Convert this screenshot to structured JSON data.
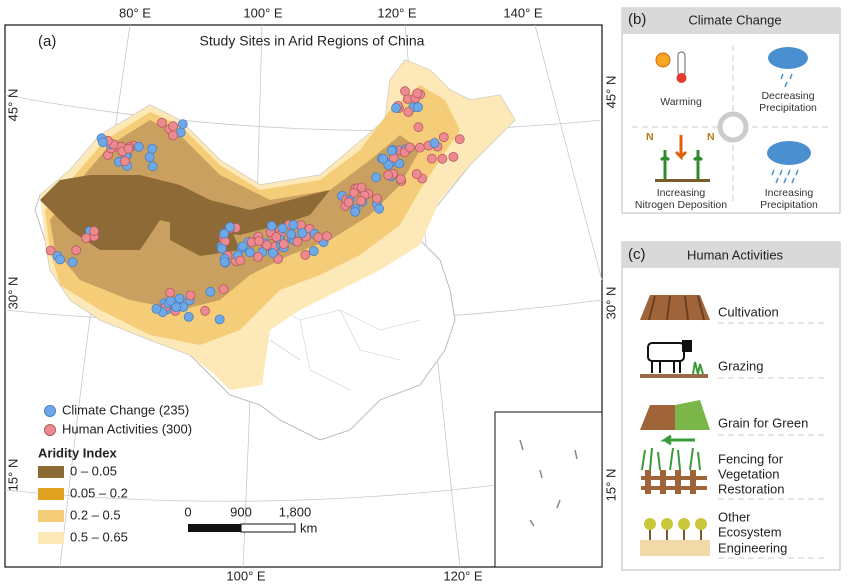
{
  "map": {
    "panel_label": "(a)",
    "title": "Study Sites in Arid Regions of China",
    "lon_labels_top": [
      "80° E",
      "100° E",
      "120° E",
      "140° E"
    ],
    "lon_labels_bottom": [
      "100° E",
      "120° E"
    ],
    "lat_labels_left": [
      "45° N",
      "30° N",
      "15° N"
    ],
    "lat_labels_right": [
      "45° N",
      "30° N",
      "15° N"
    ],
    "legend": {
      "points": [
        "Climate Change (235)",
        "Human Activities (300)"
      ],
      "aridity_title": "Aridity Index",
      "aridity_classes": [
        "0 – 0.05",
        "0.05 – 0.2",
        "0.2 – 0.5",
        "0.5 – 0.65"
      ]
    },
    "scale_bar": {
      "ticks": [
        "0",
        "900",
        "1,800"
      ],
      "unit": "km"
    }
  },
  "climate_panel": {
    "panel_label": "(b)",
    "title": "Climate Change",
    "items": [
      {
        "lines": [
          "Warming"
        ]
      },
      {
        "lines": [
          "Decreasing",
          "Precipitation"
        ]
      },
      {
        "lines": [
          "Increasing",
          "Nitrogen Deposition"
        ]
      },
      {
        "lines": [
          "Increasing",
          "Precipitation"
        ]
      }
    ],
    "n_marks": [
      "N",
      "N"
    ]
  },
  "human_panel": {
    "panel_label": "(c)",
    "title": "Human Activities",
    "items": [
      {
        "lines": [
          "Cultivation"
        ]
      },
      {
        "lines": [
          "Grazing"
        ]
      },
      {
        "lines": [
          "Grain for Green"
        ]
      },
      {
        "lines": [
          "Fencing for",
          "Vegetation",
          "Restoration"
        ]
      },
      {
        "lines": [
          "Other",
          "Ecosystem",
          "Engineering"
        ]
      }
    ]
  }
}
